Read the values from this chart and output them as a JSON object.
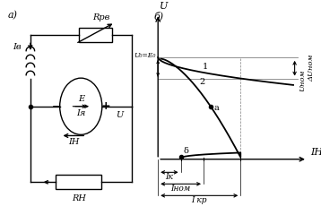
{
  "title_a": "а)",
  "title_b": "б)",
  "curve1_label": "1",
  "curve2_label": "2",
  "label_U0": "U₀=E₀",
  "label_U": "U",
  "label_IH_axis": "IН",
  "label_IK": "Iк",
  "label_INOM": "Iном",
  "label_IKR": "I кр",
  "label_UNOM": "Uном",
  "label_DUNOM": "ΔUном",
  "label_delta": "δ",
  "label_a": "a",
  "label_RRV": "Rрв",
  "label_IB": "Iв",
  "label_Iya": "Iя",
  "label_E": "E",
  "label_RH": "RН",
  "label_IH_circ": "IН",
  "label_U_circ": "U"
}
